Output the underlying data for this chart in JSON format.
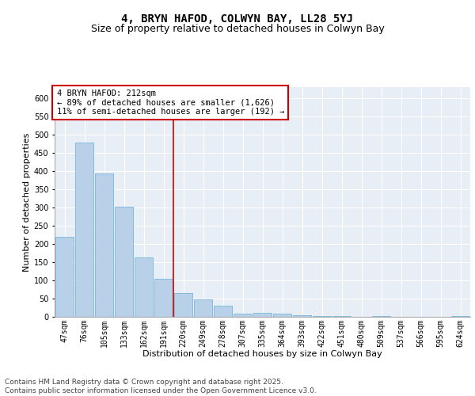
{
  "title1": "4, BRYN HAFOD, COLWYN BAY, LL28 5YJ",
  "title2": "Size of property relative to detached houses in Colwyn Bay",
  "xlabel": "Distribution of detached houses by size in Colwyn Bay",
  "ylabel": "Number of detached properties",
  "categories": [
    "47sqm",
    "76sqm",
    "105sqm",
    "133sqm",
    "162sqm",
    "191sqm",
    "220sqm",
    "249sqm",
    "278sqm",
    "307sqm",
    "335sqm",
    "364sqm",
    "393sqm",
    "422sqm",
    "451sqm",
    "480sqm",
    "509sqm",
    "537sqm",
    "566sqm",
    "595sqm",
    "624sqm"
  ],
  "values": [
    219,
    478,
    394,
    303,
    163,
    105,
    65,
    47,
    31,
    9,
    10,
    9,
    5,
    3,
    2,
    0,
    3,
    1,
    1,
    1,
    3
  ],
  "bar_color": "#b8d0e8",
  "bar_edge_color": "#6aaed6",
  "vline_x": 5.5,
  "vline_color": "#cc0000",
  "annotation_text": "4 BRYN HAFOD: 212sqm\n← 89% of detached houses are smaller (1,626)\n11% of semi-detached houses are larger (192) →",
  "annotation_box_color": "#ffffff",
  "annotation_box_edge": "#cc0000",
  "ylim": [
    0,
    630
  ],
  "yticks": [
    0,
    50,
    100,
    150,
    200,
    250,
    300,
    350,
    400,
    450,
    500,
    550,
    600
  ],
  "plot_bg": "#e8eef5",
  "footer": "Contains HM Land Registry data © Crown copyright and database right 2025.\nContains public sector information licensed under the Open Government Licence v3.0.",
  "title1_fontsize": 10,
  "title2_fontsize": 9,
  "xlabel_fontsize": 8,
  "ylabel_fontsize": 8,
  "tick_fontsize": 7,
  "annotation_fontsize": 7.5,
  "footer_fontsize": 6.5
}
